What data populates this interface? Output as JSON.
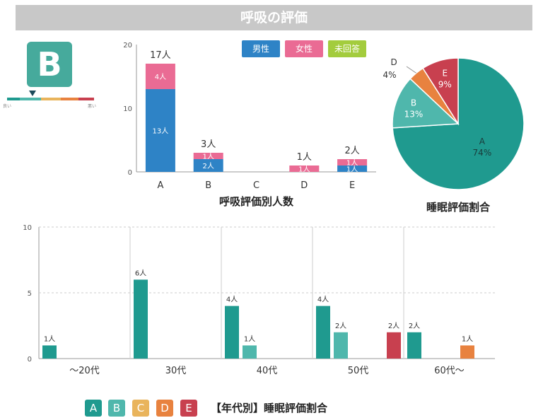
{
  "header": {
    "title": "呼吸の評価"
  },
  "grade": {
    "letter": "B",
    "scale_low": "良い",
    "scale_high": "悪い"
  },
  "colors": {
    "male": "#2e83c6",
    "female": "#ea6b94",
    "unanswered": "#a3cc3d",
    "A": "#1f9a8f",
    "B": "#4fb7ac",
    "C": "#e9b45c",
    "D": "#e8823f",
    "E": "#c8404f"
  },
  "chart_data": [
    {
      "type": "bar",
      "stacked": true,
      "xlabel": "呼吸評価別人数",
      "ylim": [
        0,
        20
      ],
      "yticks": [
        0,
        10,
        20
      ],
      "categories": [
        "A",
        "B",
        "C",
        "D",
        "E"
      ],
      "legend": [
        "男性",
        "女性",
        "未回答"
      ],
      "series": [
        {
          "name": "男性",
          "values": [
            13,
            2,
            0,
            0,
            1
          ]
        },
        {
          "name": "女性",
          "values": [
            4,
            1,
            0,
            1,
            1
          ]
        },
        {
          "name": "未回答",
          "values": [
            0,
            0,
            0,
            0,
            0
          ]
        }
      ],
      "segment_labels": [
        [
          "13人",
          "2人",
          "",
          "",
          "1人"
        ],
        [
          "4人",
          "1人",
          "",
          "1人",
          "1人"
        ]
      ],
      "totals": [
        "17人",
        "3人",
        "",
        "1人",
        "2人"
      ]
    },
    {
      "type": "pie",
      "title": "睡眠評価割合",
      "labels": [
        "A",
        "B",
        "C",
        "D",
        "E"
      ],
      "values": [
        74,
        13,
        0,
        4,
        9
      ],
      "value_labels": [
        "74%",
        "13%",
        "",
        "4%",
        "9%"
      ]
    },
    {
      "type": "bar",
      "title": "【年代別】睡眠評価割合",
      "ylim": [
        0,
        10
      ],
      "yticks": [
        0,
        5,
        10
      ],
      "categories": [
        "～20代",
        "30代",
        "40代",
        "50代",
        "60代～"
      ],
      "legend": [
        "A",
        "B",
        "C",
        "D",
        "E"
      ],
      "series": [
        {
          "name": "A",
          "values": [
            1,
            6,
            4,
            4,
            2
          ]
        },
        {
          "name": "B",
          "values": [
            0,
            0,
            1,
            2,
            0
          ]
        },
        {
          "name": "C",
          "values": [
            0,
            0,
            0,
            0,
            0
          ]
        },
        {
          "name": "D",
          "values": [
            0,
            0,
            0,
            0,
            1
          ]
        },
        {
          "name": "E",
          "values": [
            0,
            0,
            0,
            2,
            0
          ]
        }
      ],
      "unit": "人"
    }
  ]
}
